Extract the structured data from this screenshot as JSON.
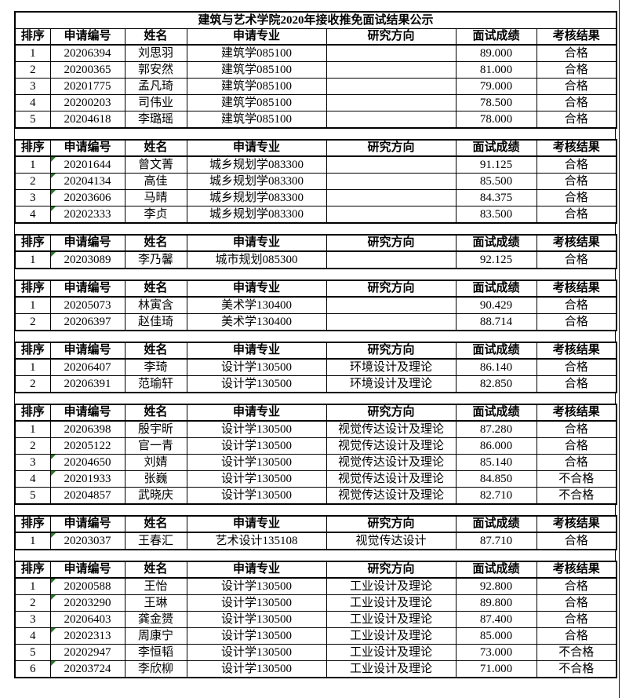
{
  "sheet": {
    "title": "建筑与艺术学院2020年接收推免面试结果公示",
    "column_headers": [
      "排序",
      "申请编号",
      "姓名",
      "申请专业",
      "研究方向",
      "面试成绩",
      "考核结果"
    ],
    "tables": [
      {
        "rows": [
          {
            "rank": "1",
            "app_no": "20206394",
            "name": "刘思羽",
            "major": "建筑学085100",
            "direction": "",
            "score": "89.000",
            "result": "合格",
            "flagged": false
          },
          {
            "rank": "2",
            "app_no": "20200365",
            "name": "郭安然",
            "major": "建筑学085100",
            "direction": "",
            "score": "81.000",
            "result": "合格",
            "flagged": false
          },
          {
            "rank": "3",
            "app_no": "20201775",
            "name": "孟凡琦",
            "major": "建筑学085100",
            "direction": "",
            "score": "79.000",
            "result": "合格",
            "flagged": false
          },
          {
            "rank": "4",
            "app_no": "20200203",
            "name": "司伟业",
            "major": "建筑学085100",
            "direction": "",
            "score": "78.500",
            "result": "合格",
            "flagged": false
          },
          {
            "rank": "5",
            "app_no": "20204618",
            "name": "李璐瑶",
            "major": "建筑学085100",
            "direction": "",
            "score": "78.000",
            "result": "合格",
            "flagged": false
          }
        ]
      },
      {
        "rows": [
          {
            "rank": "1",
            "app_no": "20201644",
            "name": "曾文菁",
            "major": "城乡规划学083300",
            "direction": "",
            "score": "91.125",
            "result": "合格",
            "flagged": true
          },
          {
            "rank": "2",
            "app_no": "20204134",
            "name": "高佳",
            "major": "城乡规划学083300",
            "direction": "",
            "score": "85.500",
            "result": "合格",
            "flagged": true
          },
          {
            "rank": "3",
            "app_no": "20203606",
            "name": "马晴",
            "major": "城乡规划学083300",
            "direction": "",
            "score": "84.375",
            "result": "合格",
            "flagged": true
          },
          {
            "rank": "4",
            "app_no": "20202333",
            "name": "李贞",
            "major": "城乡规划学083300",
            "direction": "",
            "score": "83.500",
            "result": "合格",
            "flagged": true
          }
        ]
      },
      {
        "rows": [
          {
            "rank": "1",
            "app_no": "20203089",
            "name": "李乃馨",
            "major": "城市规划085300",
            "direction": "",
            "score": "92.125",
            "result": "合格",
            "flagged": true
          }
        ]
      },
      {
        "rows": [
          {
            "rank": "1",
            "app_no": "20205073",
            "name": "林寅含",
            "major": "美术学130400",
            "direction": "",
            "score": "90.429",
            "result": "合格",
            "flagged": false
          },
          {
            "rank": "2",
            "app_no": "20206397",
            "name": "赵佳琦",
            "major": "美术学130400",
            "direction": "",
            "score": "88.714",
            "result": "合格",
            "flagged": false
          }
        ]
      },
      {
        "rows": [
          {
            "rank": "1",
            "app_no": "20206407",
            "name": "李琦",
            "major": "设计学130500",
            "direction": "环境设计及理论",
            "score": "86.140",
            "result": "合格",
            "flagged": false
          },
          {
            "rank": "2",
            "app_no": "20206391",
            "name": "范瑜轩",
            "major": "设计学130500",
            "direction": "环境设计及理论",
            "score": "82.850",
            "result": "合格",
            "flagged": false
          }
        ]
      },
      {
        "rows": [
          {
            "rank": "1",
            "app_no": "20206398",
            "name": "殷宇昕",
            "major": "设计学130500",
            "direction": "视觉传达设计及理论",
            "score": "87.280",
            "result": "合格",
            "flagged": false
          },
          {
            "rank": "2",
            "app_no": "20205122",
            "name": "官一青",
            "major": "设计学130500",
            "direction": "视觉传达设计及理论",
            "score": "86.000",
            "result": "合格",
            "flagged": false
          },
          {
            "rank": "3",
            "app_no": "20204650",
            "name": "刘婧",
            "major": "设计学130500",
            "direction": "视觉传达设计及理论",
            "score": "85.140",
            "result": "合格",
            "flagged": true
          },
          {
            "rank": "4",
            "app_no": "20201933",
            "name": "张巍",
            "major": "设计学130500",
            "direction": "视觉传达设计及理论",
            "score": "84.850",
            "result": "不合格",
            "flagged": true
          },
          {
            "rank": "5",
            "app_no": "20204857",
            "name": "武晓庆",
            "major": "设计学130500",
            "direction": "视觉传达设计及理论",
            "score": "82.710",
            "result": "不合格",
            "flagged": false
          }
        ]
      },
      {
        "rows": [
          {
            "rank": "1",
            "app_no": "20203037",
            "name": "王春汇",
            "major": "艺术设计135108",
            "direction": "视觉传达设计",
            "score": "87.710",
            "result": "合格",
            "flagged": true
          }
        ]
      },
      {
        "rows": [
          {
            "rank": "1",
            "app_no": "20200588",
            "name": "王怡",
            "major": "设计学130500",
            "direction": "工业设计及理论",
            "score": "92.800",
            "result": "合格",
            "flagged": true
          },
          {
            "rank": "2",
            "app_no": "20203290",
            "name": "王琳",
            "major": "设计学130500",
            "direction": "工业设计及理论",
            "score": "89.800",
            "result": "合格",
            "flagged": true
          },
          {
            "rank": "3",
            "app_no": "20206403",
            "name": "龚金赟",
            "major": "设计学130500",
            "direction": "工业设计及理论",
            "score": "87.400",
            "result": "合格",
            "flagged": false
          },
          {
            "rank": "4",
            "app_no": "20202313",
            "name": "周康宁",
            "major": "设计学130500",
            "direction": "工业设计及理论",
            "score": "85.000",
            "result": "合格",
            "flagged": true
          },
          {
            "rank": "5",
            "app_no": "20202947",
            "name": "李恒韬",
            "major": "设计学130500",
            "direction": "工业设计及理论",
            "score": "73.000",
            "result": "不合格",
            "flagged": false
          },
          {
            "rank": "6",
            "app_no": "20203724",
            "name": "李欣柳",
            "major": "设计学130500",
            "direction": "工业设计及理论",
            "score": "71.000",
            "result": "不合格",
            "flagged": true
          }
        ]
      }
    ]
  },
  "colors": {
    "flag_green": "#217a21",
    "border": "#000000",
    "background": "#ffffff",
    "text": "#000000"
  }
}
